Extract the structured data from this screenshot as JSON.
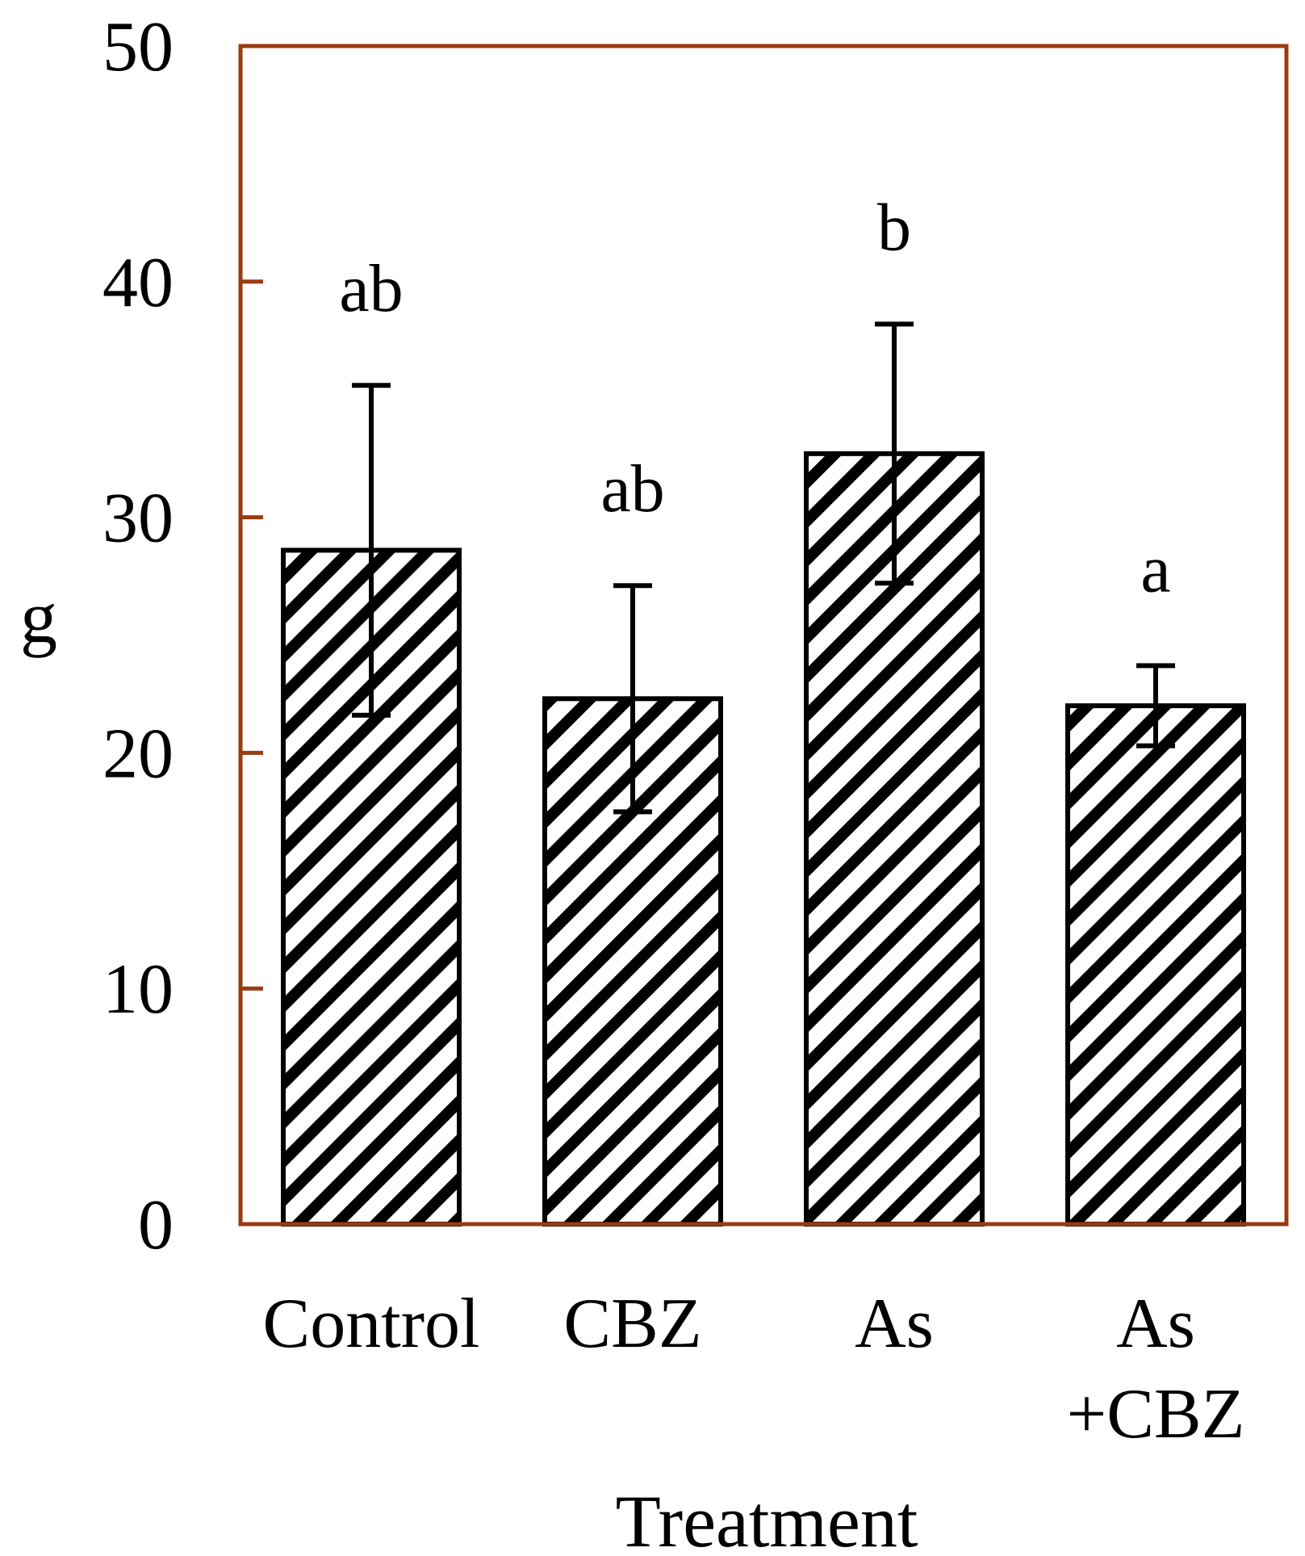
{
  "chart_data": {
    "type": "bar",
    "title": "",
    "xlabel": "Treatment",
    "ylabel": "g",
    "ylim": [
      0,
      50
    ],
    "yticks": [
      "0",
      "10",
      "20",
      "30",
      "40",
      "50"
    ],
    "grid": false,
    "categories": [
      [
        "Control"
      ],
      [
        "CBZ"
      ],
      [
        "As"
      ],
      [
        "As",
        "+CBZ"
      ]
    ],
    "values": [
      28.6,
      22.3,
      32.7,
      22.0
    ],
    "errors": [
      7.0,
      4.8,
      5.5,
      1.7
    ],
    "significance_letters": [
      "ab",
      "ab",
      "b",
      "a"
    ],
    "bar_style": "diagonal-hatch",
    "colors": {
      "frame": "#9a3b10",
      "bar_outline": "#000000",
      "hatch": "#000000",
      "error_bar": "#000000"
    }
  }
}
